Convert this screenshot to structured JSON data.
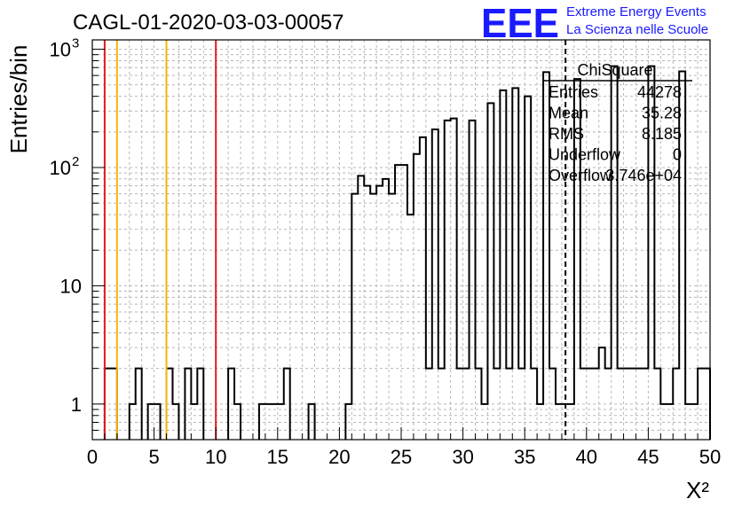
{
  "header": {
    "title": "CAGL-01-2020-03-03-00057",
    "logo": "EEE",
    "brand_line1": "Extreme Energy Events",
    "brand_line2": "La Scienza nelle Scuole"
  },
  "stats": {
    "name": "ChiSquare",
    "rows": [
      {
        "label": "Entries",
        "value": "44278"
      },
      {
        "label": "Mean",
        "value": "35.28"
      },
      {
        "label": "RMS",
        "value": "8.185"
      },
      {
        "label": "Underflow",
        "value": "0"
      },
      {
        "label": "Overflow",
        "value": "3.746e+04"
      }
    ]
  },
  "colors": {
    "red": "#e41a1c",
    "gold": "#f2b705",
    "hist": "#000000",
    "grid": "#b8b8b8",
    "brand": "#1a1aff"
  },
  "chart_data": {
    "type": "histogram",
    "xlabel": "X²",
    "ylabel": "Entries/bin",
    "xlim": [
      0,
      50
    ],
    "ylim": [
      0.5,
      1200
    ],
    "y_scale": "log",
    "grid": true,
    "x_ticks": [
      0,
      5,
      10,
      15,
      20,
      25,
      30,
      35,
      40,
      45,
      50
    ],
    "y_ticks": [
      {
        "value": 1,
        "label": "1",
        "exp": ""
      },
      {
        "value": 10,
        "label": "10",
        "exp": ""
      },
      {
        "value": 100,
        "label": "10",
        "exp": "2"
      },
      {
        "value": 1000,
        "label": "10",
        "exp": "3"
      }
    ],
    "bin_width": 0.5,
    "bins": [
      [
        1.0,
        2
      ],
      [
        1.5,
        2
      ],
      [
        3.0,
        1
      ],
      [
        3.5,
        2
      ],
      [
        4.5,
        1
      ],
      [
        5.0,
        1
      ],
      [
        6.0,
        2
      ],
      [
        6.5,
        1
      ],
      [
        7.5,
        2
      ],
      [
        8.0,
        1
      ],
      [
        8.5,
        2
      ],
      [
        11.0,
        2
      ],
      [
        11.5,
        1
      ],
      [
        13.5,
        1
      ],
      [
        14.0,
        1
      ],
      [
        14.5,
        1
      ],
      [
        15.0,
        1
      ],
      [
        15.5,
        2
      ],
      [
        17.5,
        1
      ],
      [
        20.5,
        1
      ],
      [
        21.0,
        60
      ],
      [
        21.5,
        85
      ],
      [
        22.0,
        70
      ],
      [
        22.5,
        60
      ],
      [
        23.0,
        70
      ],
      [
        23.5,
        80
      ],
      [
        24.0,
        60
      ],
      [
        24.5,
        105
      ],
      [
        25.0,
        105
      ],
      [
        25.5,
        40
      ],
      [
        26.0,
        130
      ],
      [
        26.5,
        180
      ],
      [
        27.0,
        2
      ],
      [
        27.5,
        210
      ],
      [
        28.0,
        2
      ],
      [
        28.5,
        250
      ],
      [
        29.0,
        260
      ],
      [
        29.5,
        2
      ],
      [
        30.0,
        2
      ],
      [
        30.5,
        250
      ],
      [
        31.0,
        2
      ],
      [
        31.5,
        1
      ],
      [
        32.0,
        350
      ],
      [
        32.5,
        2
      ],
      [
        33.0,
        450
      ],
      [
        33.5,
        2
      ],
      [
        34.0,
        470
      ],
      [
        34.5,
        2
      ],
      [
        35.0,
        400
      ],
      [
        35.5,
        2
      ],
      [
        36.0,
        1
      ],
      [
        36.5,
        640
      ],
      [
        37.0,
        2
      ],
      [
        37.5,
        1
      ],
      [
        38.0,
        1
      ],
      [
        38.5,
        1
      ],
      [
        39.0,
        560
      ],
      [
        39.5,
        2
      ],
      [
        40.0,
        2
      ],
      [
        40.5,
        2
      ],
      [
        41.0,
        3
      ],
      [
        41.5,
        2
      ],
      [
        42.0,
        720
      ],
      [
        42.5,
        2
      ],
      [
        43.0,
        2
      ],
      [
        43.5,
        2
      ],
      [
        44.0,
        2
      ],
      [
        44.5,
        2
      ],
      [
        45.0,
        720
      ],
      [
        45.5,
        2
      ],
      [
        46.0,
        1
      ],
      [
        46.5,
        1
      ],
      [
        47.0,
        2
      ],
      [
        47.5,
        650
      ],
      [
        48.0,
        1
      ],
      [
        48.5,
        1
      ],
      [
        49.0,
        2
      ],
      [
        49.5,
        2
      ]
    ],
    "vertical_lines": [
      {
        "x": 1,
        "color": "red",
        "style": "solid"
      },
      {
        "x": 10,
        "color": "red",
        "style": "solid"
      },
      {
        "x": 2,
        "color": "gold",
        "style": "solid"
      },
      {
        "x": 6,
        "color": "gold",
        "style": "solid"
      },
      {
        "x": 38.3,
        "color": "black",
        "style": "dashed"
      }
    ]
  }
}
